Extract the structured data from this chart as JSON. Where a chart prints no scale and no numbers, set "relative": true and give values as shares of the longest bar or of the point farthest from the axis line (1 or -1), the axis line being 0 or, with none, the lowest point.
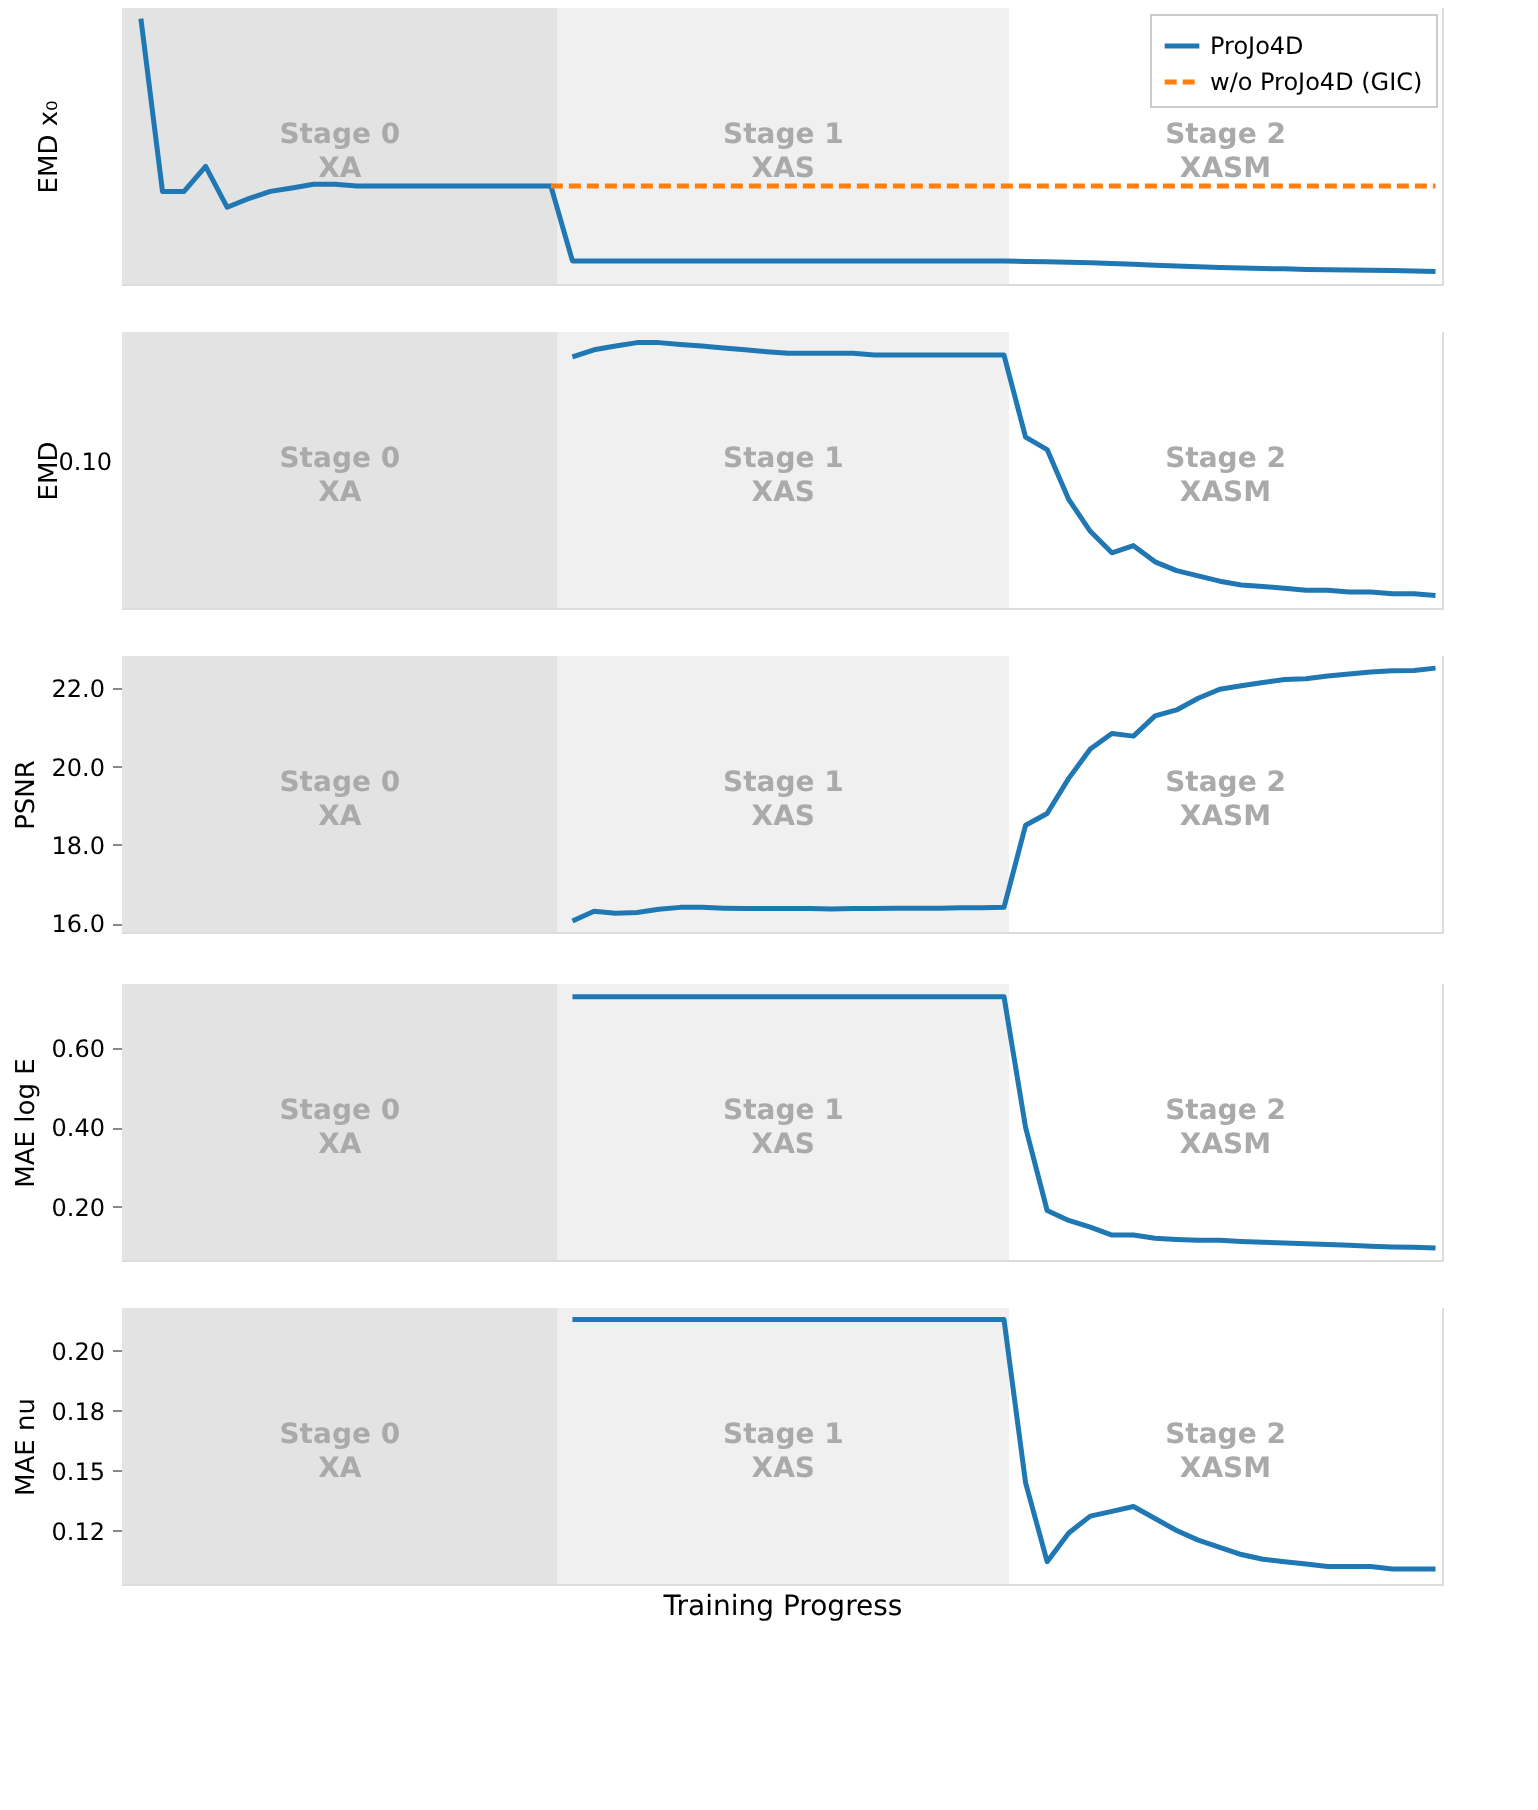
{
  "chart_data": [
    {
      "type": "line",
      "ylabel": "EMD x₀",
      "relative": true,
      "tick_labels": false,
      "legend": "top right",
      "categories": [
        null,
        null,
        null,
        null,
        null,
        null,
        null,
        null,
        null,
        null,
        null,
        null,
        null,
        null,
        null,
        null,
        null,
        null,
        null,
        null,
        null,
        null,
        null,
        null,
        null,
        null,
        null,
        null,
        null,
        null,
        null,
        null,
        null,
        null,
        null,
        null,
        null,
        null,
        null,
        null,
        null,
        null,
        null,
        null,
        null,
        null,
        null,
        null,
        null,
        null,
        null,
        null,
        null,
        null,
        null,
        null,
        null,
        null,
        null,
        null,
        null
      ],
      "annotations": [
        "Stage 0\nXA",
        "Stage 1\nXAS",
        "Stage 2\nXASM"
      ],
      "series": [
        {
          "name": "ProJo4D",
          "color": "#1f77b4",
          "line_style": "solid",
          "values": [
            1.0,
            0.349,
            0.349,
            0.443,
            0.289,
            0.322,
            0.349,
            0.362,
            0.376,
            0.376,
            0.369,
            0.369,
            0.369,
            0.369,
            0.369,
            0.369,
            0.369,
            0.369,
            0.369,
            0.369,
            0.087,
            0.087,
            0.087,
            0.087,
            0.087,
            0.087,
            0.087,
            0.087,
            0.087,
            0.087,
            0.087,
            0.087,
            0.087,
            0.087,
            0.087,
            0.087,
            0.087,
            0.087,
            0.087,
            0.087,
            0.087,
            0.085,
            0.084,
            0.082,
            0.08,
            0.077,
            0.074,
            0.071,
            0.068,
            0.065,
            0.062,
            0.06,
            0.058,
            0.057,
            0.055,
            0.054,
            0.053,
            0.052,
            0.051,
            0.049,
            0.047
          ]
        },
        {
          "name": "w/o ProJo4D (GIC)",
          "color": "#ff7f0e",
          "line_style": "dashed",
          "values": [
            null,
            null,
            null,
            null,
            null,
            null,
            null,
            null,
            null,
            null,
            null,
            null,
            null,
            null,
            null,
            null,
            null,
            null,
            null,
            0.369,
            0.369,
            0.369,
            0.369,
            0.369,
            0.369,
            0.369,
            0.369,
            0.369,
            0.369,
            0.369,
            0.369,
            0.369,
            0.369,
            0.369,
            0.369,
            0.369,
            0.369,
            0.369,
            0.369,
            0.369,
            0.369,
            0.369,
            0.369,
            0.369,
            0.369,
            0.369,
            0.369,
            0.369,
            0.369,
            0.369,
            0.369,
            0.369,
            0.369,
            0.369,
            0.369,
            0.369,
            0.369,
            0.369,
            0.369,
            0.369,
            0.369
          ]
        }
      ]
    },
    {
      "type": "line",
      "ylabel": "EMD",
      "relative": true,
      "tick_labels": false,
      "categories": [
        null,
        null,
        null,
        null,
        null,
        null,
        null,
        null,
        null,
        null,
        null,
        null,
        null,
        null,
        null,
        null,
        null,
        null,
        null,
        null,
        null,
        null,
        null,
        null,
        null,
        null,
        null,
        null,
        null,
        null,
        null,
        null,
        null,
        null,
        null,
        null,
        null,
        null,
        null,
        null,
        null,
        null,
        null,
        null,
        null,
        null,
        null,
        null,
        null,
        null,
        null,
        null,
        null,
        null,
        null,
        null,
        null,
        null,
        null,
        null,
        null
      ],
      "annotations": [
        "Stage 0\nXA",
        "Stage 1\nXAS",
        "Stage 2\nXASM",
        "0.10"
      ],
      "series": [
        {
          "color": "#1f77b4",
          "line_style": "solid",
          "values": [
            null,
            null,
            null,
            null,
            null,
            null,
            null,
            null,
            null,
            null,
            null,
            null,
            null,
            null,
            null,
            null,
            null,
            null,
            null,
            null,
            0.946,
            0.973,
            0.987,
            1.0,
            1.0,
            0.993,
            0.987,
            0.98,
            0.973,
            0.966,
            0.96,
            0.96,
            0.96,
            0.96,
            0.953,
            0.953,
            0.953,
            0.953,
            0.953,
            0.953,
            0.953,
            0.644,
            0.597,
            0.409,
            0.289,
            0.208,
            0.235,
            0.174,
            0.141,
            0.121,
            0.101,
            0.087,
            0.081,
            0.074,
            0.067,
            0.067,
            0.06,
            0.06,
            0.054,
            0.054,
            0.047
          ]
        }
      ]
    },
    {
      "type": "line",
      "ylabel": "PSNR",
      "ylim": [
        15.77,
        22.83
      ],
      "yticks": [
        {
          "value": 16,
          "label": "16.0"
        },
        {
          "value": 18,
          "label": "18.0"
        },
        {
          "value": 20,
          "label": "20.0"
        },
        {
          "value": 22,
          "label": "22.0"
        }
      ],
      "grid": "y",
      "tick_labels": "y",
      "categories": [
        null,
        null,
        null,
        null,
        null,
        null,
        null,
        null,
        null,
        null,
        null,
        null,
        null,
        null,
        null,
        null,
        null,
        null,
        null,
        null,
        null,
        null,
        null,
        null,
        null,
        null,
        null,
        null,
        null,
        null,
        null,
        null,
        null,
        null,
        null,
        null,
        null,
        null,
        null,
        null,
        null,
        null,
        null,
        null,
        null,
        null,
        null,
        null,
        null,
        null,
        null,
        null,
        null,
        null,
        null,
        null,
        null,
        null,
        null,
        null,
        null
      ],
      "annotations": [
        "Stage 0\nXA",
        "Stage 1\nXAS",
        "Stage 2\nXASM"
      ],
      "series": [
        {
          "color": "#1f77b4",
          "line_style": "solid",
          "values": [
            null,
            null,
            null,
            null,
            null,
            null,
            null,
            null,
            null,
            null,
            null,
            null,
            null,
            null,
            null,
            null,
            null,
            null,
            null,
            null,
            16.05,
            16.3,
            16.25,
            16.27,
            16.35,
            16.4,
            16.4,
            16.38,
            16.37,
            16.37,
            16.37,
            16.37,
            16.36,
            16.37,
            16.37,
            16.38,
            16.38,
            16.38,
            16.39,
            16.39,
            16.4,
            18.5,
            18.8,
            19.7,
            20.45,
            20.85,
            20.78,
            21.3,
            21.45,
            21.75,
            21.98,
            22.07,
            22.15,
            22.23,
            22.25,
            22.32,
            22.37,
            22.42,
            22.45,
            22.46,
            22.52
          ]
        }
      ]
    },
    {
      "type": "line",
      "ylabel": "MAE log E",
      "ylim": [
        0.065,
        0.762
      ],
      "yticks": [
        {
          "value": 0.2,
          "label": "0.20"
        },
        {
          "value": 0.4,
          "label": "0.40"
        },
        {
          "value": 0.6,
          "label": "0.60"
        }
      ],
      "grid": "y",
      "tick_labels": "y",
      "categories": [
        null,
        null,
        null,
        null,
        null,
        null,
        null,
        null,
        null,
        null,
        null,
        null,
        null,
        null,
        null,
        null,
        null,
        null,
        null,
        null,
        null,
        null,
        null,
        null,
        null,
        null,
        null,
        null,
        null,
        null,
        null,
        null,
        null,
        null,
        null,
        null,
        null,
        null,
        null,
        null,
        null,
        null,
        null,
        null,
        null,
        null,
        null,
        null,
        null,
        null,
        null,
        null,
        null,
        null,
        null,
        null,
        null,
        null,
        null,
        null,
        null
      ],
      "annotations": [
        "Stage 0\nXA",
        "Stage 1\nXAS",
        "Stage 2\nXASM"
      ],
      "series": [
        {
          "color": "#1f77b4",
          "line_style": "solid",
          "values": [
            null,
            null,
            null,
            null,
            null,
            null,
            null,
            null,
            null,
            null,
            null,
            null,
            null,
            null,
            null,
            null,
            null,
            null,
            null,
            null,
            0.73,
            0.73,
            0.73,
            0.73,
            0.73,
            0.73,
            0.73,
            0.73,
            0.73,
            0.73,
            0.73,
            0.73,
            0.73,
            0.73,
            0.73,
            0.73,
            0.73,
            0.73,
            0.73,
            0.73,
            0.73,
            0.4,
            0.19,
            0.165,
            0.148,
            0.128,
            0.128,
            0.12,
            0.117,
            0.115,
            0.115,
            0.112,
            0.11,
            0.108,
            0.106,
            0.104,
            0.102,
            0.1,
            0.098,
            0.097,
            0.095
          ]
        }
      ]
    },
    {
      "type": "line",
      "ylabel": "MAE nu",
      "xlabel": "Training Progress",
      "ylim": [
        0.1027,
        0.2178
      ],
      "yticks": [
        {
          "value": 0.125,
          "label": "0.12"
        },
        {
          "value": 0.15,
          "label": "0.15"
        },
        {
          "value": 0.175,
          "label": "0.18"
        },
        {
          "value": 0.2,
          "label": "0.20"
        }
      ],
      "grid": "y",
      "tick_labels": "y",
      "categories": [
        null,
        null,
        null,
        null,
        null,
        null,
        null,
        null,
        null,
        null,
        null,
        null,
        null,
        null,
        null,
        null,
        null,
        null,
        null,
        null,
        null,
        null,
        null,
        null,
        null,
        null,
        null,
        null,
        null,
        null,
        null,
        null,
        null,
        null,
        null,
        null,
        null,
        null,
        null,
        null,
        null,
        null,
        null,
        null,
        null,
        null,
        null,
        null,
        null,
        null,
        null,
        null,
        null,
        null,
        null,
        null,
        null,
        null,
        null,
        null,
        null
      ],
      "annotations": [
        "Stage 0\nXA",
        "Stage 1\nXAS",
        "Stage 2\nXASM"
      ],
      "series": [
        {
          "color": "#1f77b4",
          "line_style": "solid",
          "values": [
            null,
            null,
            null,
            null,
            null,
            null,
            null,
            null,
            null,
            null,
            null,
            null,
            null,
            null,
            null,
            null,
            null,
            null,
            null,
            null,
            0.213,
            0.213,
            0.213,
            0.213,
            0.213,
            0.213,
            0.213,
            0.213,
            0.213,
            0.213,
            0.213,
            0.213,
            0.213,
            0.213,
            0.213,
            0.213,
            0.213,
            0.213,
            0.213,
            0.213,
            0.213,
            0.145,
            0.112,
            0.124,
            0.131,
            0.133,
            0.135,
            0.13,
            0.125,
            0.121,
            0.118,
            0.115,
            0.113,
            0.112,
            0.111,
            0.11,
            0.11,
            0.11,
            0.109,
            0.109,
            0.109
          ]
        }
      ]
    }
  ]
}
